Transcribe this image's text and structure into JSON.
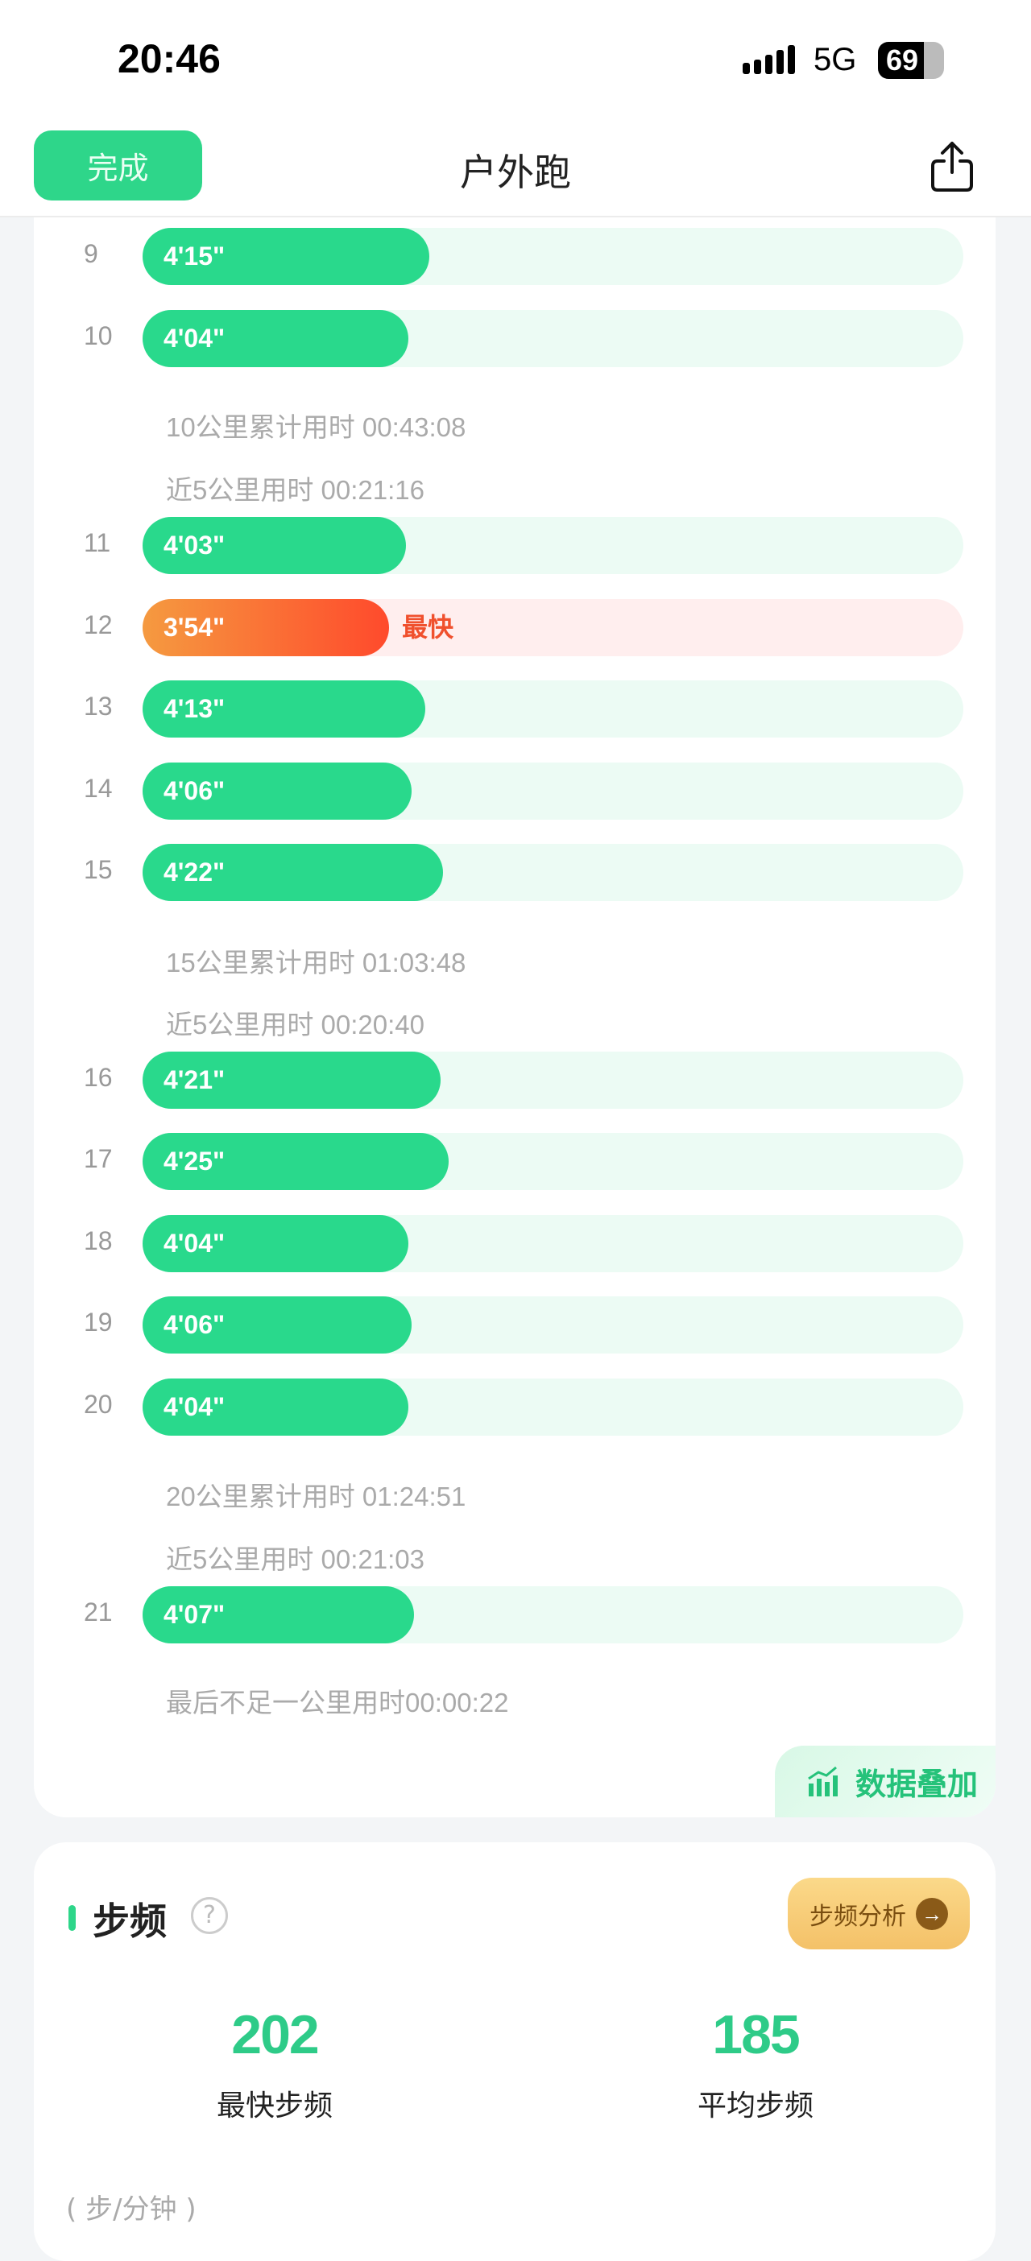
{
  "status_bar": {
    "time": "20:46",
    "network": "5G",
    "battery": "69",
    "battery_level": 69
  },
  "nav": {
    "done_label": "完成",
    "title": "户外跑",
    "share_icon": "share-icon"
  },
  "colors": {
    "accent": "#2ed68a",
    "fastest": "#ff4a2c",
    "track": "#ecfbf4"
  },
  "splits": [
    {
      "km": "",
      "pace": "4'15\""
    },
    {
      "km": "9",
      "pace": "4'15\""
    },
    {
      "km": "10",
      "pace": "4'04\""
    },
    {
      "km": "11",
      "pace": "4'03\""
    },
    {
      "km": "12",
      "pace": "3'54\"",
      "tag": "最快"
    },
    {
      "km": "13",
      "pace": "4'13\""
    },
    {
      "km": "14",
      "pace": "4'06\""
    },
    {
      "km": "15",
      "pace": "4'22\""
    },
    {
      "km": "16",
      "pace": "4'21\""
    },
    {
      "km": "17",
      "pace": "4'25\""
    },
    {
      "km": "18",
      "pace": "4'04\""
    },
    {
      "km": "19",
      "pace": "4'06\""
    },
    {
      "km": "20",
      "pace": "4'04\""
    },
    {
      "km": "21",
      "pace": "4'07\""
    }
  ],
  "summaries": [
    "10公里累计用时 00:43:08",
    "近5公里用时 00:21:16",
    "15公里累计用时 01:03:48",
    "近5公里用时 00:20:40",
    "20公里累计用时 01:24:51",
    "近5公里用时 00:21:03",
    "最后不足一公里用时00:00:22"
  ],
  "overlay_button": "数据叠加",
  "cadence": {
    "title": "步频",
    "analysis_label": "步频分析",
    "fastest_value": "202",
    "fastest_label": "最快步频",
    "avg_value": "185",
    "avg_label": "平均步频",
    "unit": "( 步/分钟 )"
  }
}
